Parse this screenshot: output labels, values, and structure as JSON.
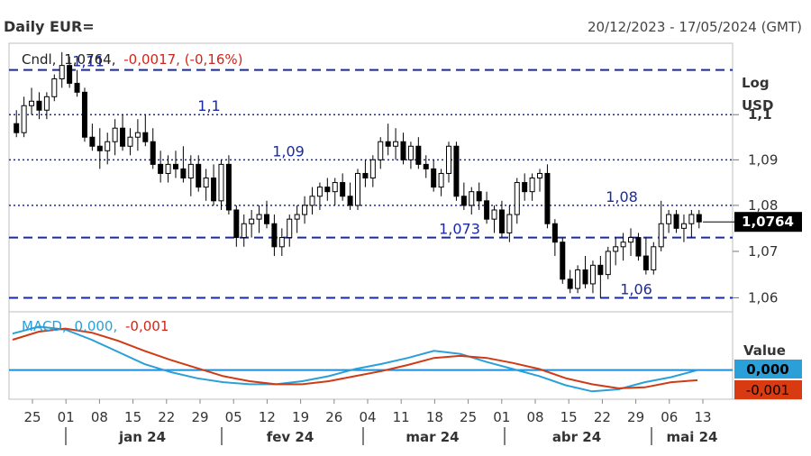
{
  "header": {
    "title": "Daily EUR=",
    "range": "20/12/2023 - 17/05/2024 (GMT)"
  },
  "price_legend": {
    "name": "Cndl,",
    "last": "1,0764,",
    "change": "-0,0017, (-0,16%)"
  },
  "macd_legend": {
    "name": "MACD,",
    "v1": "0,000,",
    "v2": "-0,001"
  },
  "price_axis": {
    "scale_label_1": "Log",
    "scale_label_2": "USD",
    "ticks": [
      "1,1",
      "1,09",
      "1,08",
      "1,07",
      "1,06"
    ],
    "last_badge": "1,0764"
  },
  "macd_axis": {
    "title": "Value",
    "badge_macd": "0,000",
    "badge_signal": "-0,001"
  },
  "levels": [
    {
      "value": 1.11,
      "label": "1,11",
      "style": "dashed"
    },
    {
      "value": 1.1,
      "label": "1,1",
      "style": "dotted"
    },
    {
      "value": 1.09,
      "label": "1,09",
      "style": "dotted"
    },
    {
      "value": 1.08,
      "label": "1,08",
      "style": "dotted"
    },
    {
      "value": 1.073,
      "label": "1,073",
      "style": "dashed"
    },
    {
      "value": 1.06,
      "label": "1,06",
      "style": "dashed"
    }
  ],
  "date_axis": {
    "day_ticks": [
      "25",
      "01",
      "08",
      "15",
      "22",
      "29",
      "05",
      "12",
      "19",
      "26",
      "04",
      "11",
      "18",
      "25",
      "01",
      "08",
      "15",
      "22",
      "29",
      "06",
      "13"
    ],
    "months": [
      "jan 24",
      "fev 24",
      "mar 24",
      "abr 24",
      "mai 24"
    ]
  },
  "colors": {
    "macd": "#2a9fd8",
    "signal": "#d03a14",
    "zero": "#1c8fd6",
    "levels": "#1a2aa0",
    "candle": "#000000"
  },
  "chart_data": [
    {
      "type": "candlestick",
      "title": "Daily EUR=",
      "scale": "log",
      "ylim": [
        1.057,
        1.116
      ],
      "ylabel": "USD",
      "candles": [
        [
          1.098,
          1.101,
          1.095,
          1.096
        ],
        [
          1.096,
          1.104,
          1.095,
          1.102
        ],
        [
          1.102,
          1.106,
          1.1,
          1.103
        ],
        [
          1.103,
          1.105,
          1.099,
          1.101
        ],
        [
          1.101,
          1.105,
          1.099,
          1.104
        ],
        [
          1.104,
          1.109,
          1.103,
          1.108
        ],
        [
          1.108,
          1.114,
          1.106,
          1.111
        ],
        [
          1.111,
          1.113,
          1.106,
          1.107
        ],
        [
          1.107,
          1.11,
          1.104,
          1.105
        ],
        [
          1.105,
          1.106,
          1.094,
          1.095
        ],
        [
          1.095,
          1.098,
          1.092,
          1.093
        ],
        [
          1.093,
          1.097,
          1.088,
          1.092
        ],
        [
          1.092,
          1.096,
          1.089,
          1.094
        ],
        [
          1.094,
          1.099,
          1.091,
          1.097
        ],
        [
          1.097,
          1.1,
          1.092,
          1.093
        ],
        [
          1.093,
          1.097,
          1.091,
          1.095
        ],
        [
          1.095,
          1.099,
          1.092,
          1.096
        ],
        [
          1.096,
          1.1,
          1.093,
          1.094
        ],
        [
          1.094,
          1.097,
          1.088,
          1.089
        ],
        [
          1.089,
          1.092,
          1.085,
          1.087
        ],
        [
          1.087,
          1.091,
          1.085,
          1.089
        ],
        [
          1.089,
          1.092,
          1.086,
          1.088
        ],
        [
          1.088,
          1.093,
          1.085,
          1.086
        ],
        [
          1.086,
          1.091,
          1.082,
          1.089
        ],
        [
          1.089,
          1.091,
          1.083,
          1.084
        ],
        [
          1.084,
          1.088,
          1.081,
          1.086
        ],
        [
          1.086,
          1.089,
          1.08,
          1.081
        ],
        [
          1.081,
          1.09,
          1.079,
          1.089
        ],
        [
          1.089,
          1.091,
          1.078,
          1.079
        ],
        [
          1.079,
          1.08,
          1.071,
          1.073
        ],
        [
          1.073,
          1.078,
          1.071,
          1.076
        ],
        [
          1.076,
          1.079,
          1.073,
          1.077
        ],
        [
          1.077,
          1.08,
          1.074,
          1.078
        ],
        [
          1.078,
          1.081,
          1.075,
          1.076
        ],
        [
          1.076,
          1.078,
          1.069,
          1.071
        ],
        [
          1.071,
          1.075,
          1.069,
          1.073
        ],
        [
          1.073,
          1.078,
          1.071,
          1.077
        ],
        [
          1.077,
          1.08,
          1.074,
          1.078
        ],
        [
          1.078,
          1.082,
          1.076,
          1.08
        ],
        [
          1.08,
          1.084,
          1.078,
          1.082
        ],
        [
          1.082,
          1.085,
          1.079,
          1.084
        ],
        [
          1.084,
          1.086,
          1.081,
          1.083
        ],
        [
          1.083,
          1.086,
          1.08,
          1.085
        ],
        [
          1.085,
          1.087,
          1.081,
          1.082
        ],
        [
          1.082,
          1.085,
          1.079,
          1.08
        ],
        [
          1.08,
          1.088,
          1.079,
          1.087
        ],
        [
          1.087,
          1.09,
          1.084,
          1.086
        ],
        [
          1.086,
          1.091,
          1.084,
          1.09
        ],
        [
          1.09,
          1.095,
          1.088,
          1.094
        ],
        [
          1.094,
          1.098,
          1.091,
          1.093
        ],
        [
          1.093,
          1.097,
          1.09,
          1.094
        ],
        [
          1.094,
          1.096,
          1.089,
          1.09
        ],
        [
          1.09,
          1.094,
          1.088,
          1.093
        ],
        [
          1.093,
          1.095,
          1.088,
          1.089
        ],
        [
          1.089,
          1.091,
          1.086,
          1.088
        ],
        [
          1.088,
          1.09,
          1.083,
          1.084
        ],
        [
          1.084,
          1.088,
          1.082,
          1.087
        ],
        [
          1.087,
          1.094,
          1.085,
          1.093
        ],
        [
          1.093,
          1.094,
          1.081,
          1.082
        ],
        [
          1.082,
          1.085,
          1.079,
          1.08
        ],
        [
          1.08,
          1.084,
          1.078,
          1.083
        ],
        [
          1.083,
          1.085,
          1.079,
          1.081
        ],
        [
          1.081,
          1.083,
          1.076,
          1.077
        ],
        [
          1.077,
          1.08,
          1.074,
          1.079
        ],
        [
          1.079,
          1.081,
          1.073,
          1.074
        ],
        [
          1.074,
          1.08,
          1.072,
          1.078
        ],
        [
          1.078,
          1.086,
          1.076,
          1.085
        ],
        [
          1.085,
          1.087,
          1.081,
          1.083
        ],
        [
          1.083,
          1.087,
          1.081,
          1.086
        ],
        [
          1.086,
          1.088,
          1.083,
          1.087
        ],
        [
          1.087,
          1.089,
          1.075,
          1.076
        ],
        [
          1.076,
          1.077,
          1.069,
          1.072
        ],
        [
          1.072,
          1.073,
          1.063,
          1.064
        ],
        [
          1.064,
          1.066,
          1.061,
          1.062
        ],
        [
          1.062,
          1.067,
          1.061,
          1.066
        ],
        [
          1.066,
          1.069,
          1.062,
          1.063
        ],
        [
          1.063,
          1.068,
          1.061,
          1.067
        ],
        [
          1.067,
          1.069,
          1.06,
          1.065
        ],
        [
          1.065,
          1.071,
          1.064,
          1.07
        ],
        [
          1.07,
          1.073,
          1.067,
          1.071
        ],
        [
          1.071,
          1.074,
          1.068,
          1.072
        ],
        [
          1.072,
          1.075,
          1.069,
          1.073
        ],
        [
          1.073,
          1.074,
          1.068,
          1.069
        ],
        [
          1.069,
          1.073,
          1.065,
          1.066
        ],
        [
          1.066,
          1.072,
          1.065,
          1.071
        ],
        [
          1.071,
          1.081,
          1.07,
          1.076
        ],
        [
          1.076,
          1.079,
          1.074,
          1.078
        ],
        [
          1.078,
          1.079,
          1.074,
          1.075
        ],
        [
          1.075,
          1.078,
          1.072,
          1.076
        ],
        [
          1.076,
          1.079,
          1.073,
          1.078
        ],
        [
          1.078,
          1.079,
          1.075,
          1.0764
        ]
      ]
    },
    {
      "type": "line",
      "title": "MACD",
      "series": [
        {
          "name": "MACD",
          "values": [
            0.0036,
            0.0043,
            0.004,
            0.003,
            0.0018,
            0.0006,
            -0.0002,
            -0.0008,
            -0.0012,
            -0.0014,
            -0.0014,
            -0.0011,
            -0.0006,
            0.0001,
            0.0006,
            0.0012,
            0.0019,
            0.0016,
            0.0008,
            0.0001,
            -0.0006,
            -0.0015,
            -0.0021,
            -0.0019,
            -0.0012,
            -0.0007,
            0.0
          ]
        },
        {
          "name": "Signal",
          "values": [
            0.003,
            0.0038,
            0.0041,
            0.0037,
            0.0029,
            0.0019,
            0.001,
            0.0002,
            -0.0006,
            -0.0011,
            -0.0014,
            -0.0014,
            -0.0011,
            -0.0006,
            -0.0001,
            0.0005,
            0.0012,
            0.0014,
            0.0012,
            0.0007,
            0.0001,
            -0.0008,
            -0.0014,
            -0.0018,
            -0.0017,
            -0.0012,
            -0.001
          ]
        }
      ],
      "ylim": [
        -0.0027,
        0.0054
      ]
    }
  ]
}
